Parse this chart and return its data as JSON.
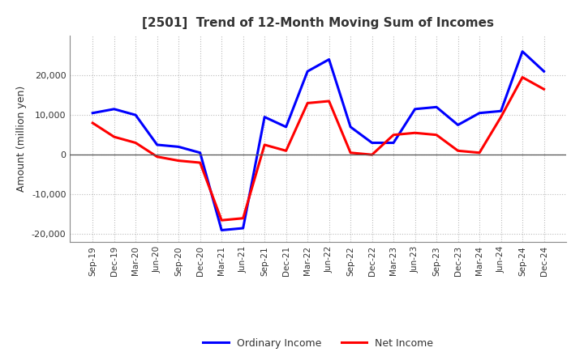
{
  "title": "[2501]  Trend of 12-Month Moving Sum of Incomes",
  "ylabel": "Amount (million yen)",
  "x_labels": [
    "Sep-19",
    "Dec-19",
    "Mar-20",
    "Jun-20",
    "Sep-20",
    "Dec-20",
    "Mar-21",
    "Jun-21",
    "Sep-21",
    "Dec-21",
    "Mar-22",
    "Jun-22",
    "Sep-22",
    "Dec-22",
    "Mar-23",
    "Jun-23",
    "Sep-23",
    "Dec-23",
    "Mar-24",
    "Jun-24",
    "Sep-24",
    "Dec-24"
  ],
  "ordinary_income": [
    10500,
    11500,
    10000,
    2500,
    2000,
    500,
    -19000,
    -18500,
    9500,
    7000,
    21000,
    24000,
    7000,
    3000,
    3000,
    11500,
    12000,
    7500,
    10500,
    11000,
    26000,
    21000
  ],
  "net_income": [
    8000,
    4500,
    3000,
    -500,
    -1500,
    -2000,
    -16500,
    -16000,
    2500,
    1000,
    13000,
    13500,
    500,
    0,
    5000,
    5500,
    5000,
    1000,
    500,
    9500,
    19500,
    16500
  ],
  "ordinary_income_color": "#0000FF",
  "net_income_color": "#FF0000",
  "ylim": [
    -22000,
    30000
  ],
  "yticks": [
    -20000,
    -10000,
    0,
    10000,
    20000
  ],
  "grid_color": "#bbbbbb",
  "bg_color": "#ffffff",
  "text_color": "#333333",
  "legend_ordinary": "Ordinary Income",
  "legend_net": "Net Income"
}
